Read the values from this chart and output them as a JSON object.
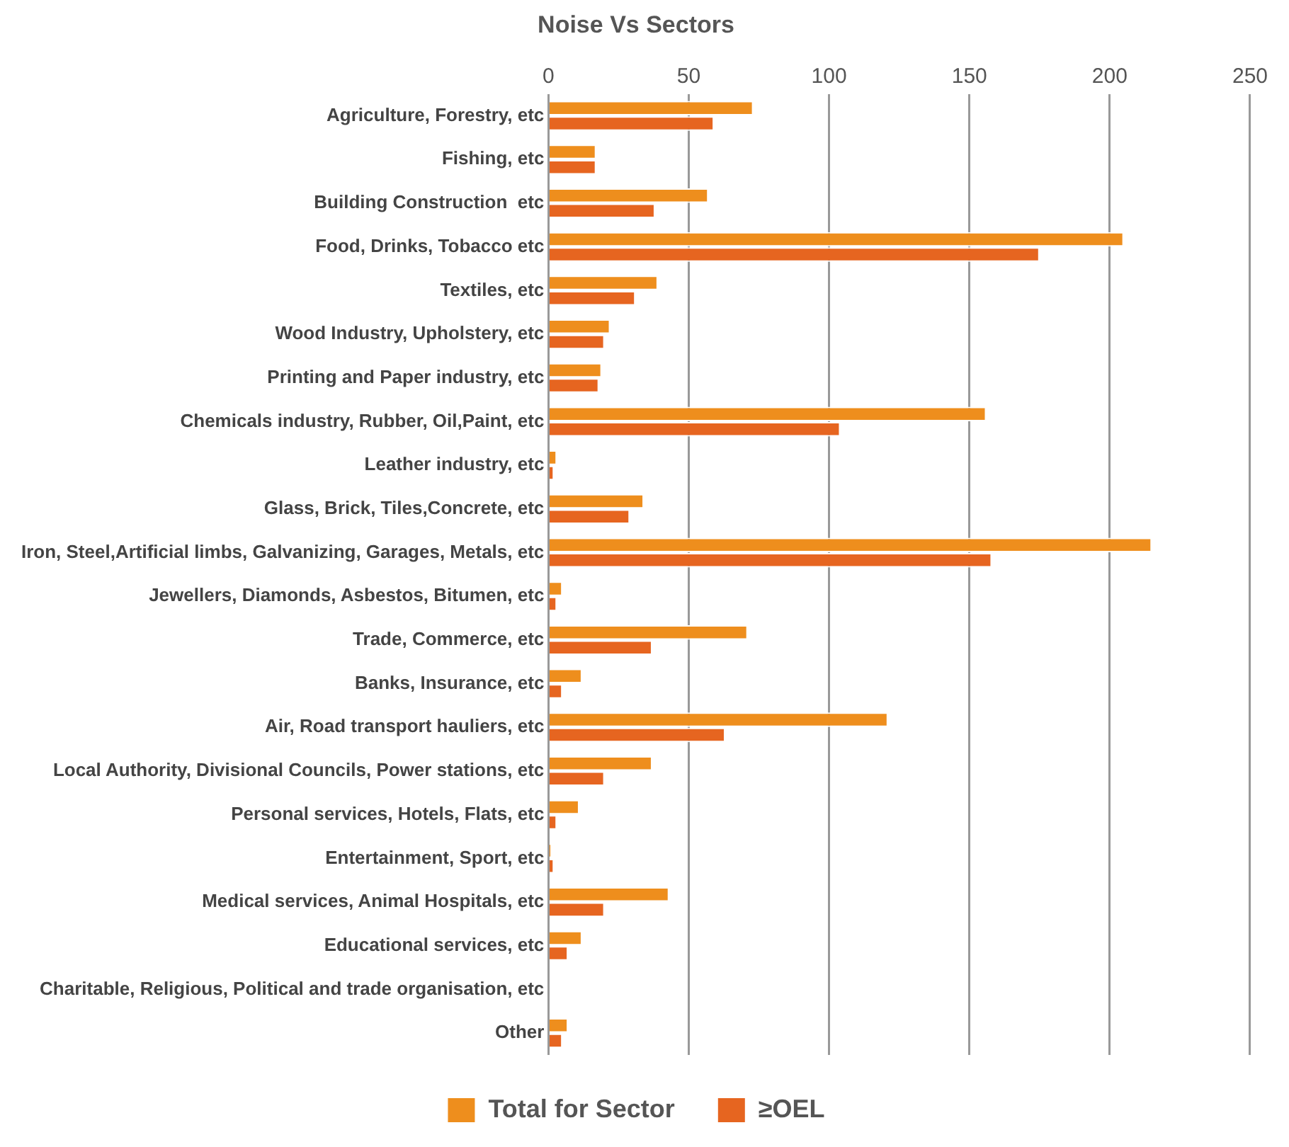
{
  "chart_data": {
    "type": "bar",
    "orientation": "horizontal",
    "title": "Noise Vs Sectors",
    "categories": [
      "Agriculture, Forestry, etc",
      "Fishing, etc",
      "Building Construction  etc",
      "Food, Drinks, Tobacco etc",
      "Textiles, etc",
      "Wood Industry, Upholstery, etc",
      "Printing and Paper industry, etc",
      "Chemicals industry, Rubber, Oil,Paint, etc",
      "Leather industry, etc",
      "Glass, Brick, Tiles,Concrete, etc",
      "Iron, Steel,Artificial limbs, Galvanizing, Garages, Metals, etc",
      "Jewellers, Diamonds, Asbestos, Bitumen, etc",
      "Trade, Commerce, etc",
      "Banks, Insurance, etc",
      "Air, Road transport hauliers, etc",
      "Local Authority, Divisional Councils, Power stations, etc",
      "Personal services, Hotels, Flats, etc",
      "Entertainment, Sport, etc",
      "Medical services, Animal Hospitals, etc",
      "Educational services, etc",
      "Charitable, Religious, Political and trade organisation, etc",
      "Other"
    ],
    "series": [
      {
        "name": "Total for Sector",
        "color": "#ee8e1d",
        "values": [
          73,
          17,
          57,
          205,
          39,
          22,
          19,
          156,
          3,
          34,
          215,
          5,
          71,
          12,
          121,
          37,
          11,
          1,
          43,
          12,
          0,
          7
        ]
      },
      {
        "name": "≥OEL",
        "color": "#e66520",
        "values": [
          59,
          17,
          38,
          175,
          31,
          20,
          18,
          104,
          2,
          29,
          158,
          3,
          37,
          5,
          63,
          20,
          3,
          2,
          20,
          7,
          0,
          5
        ]
      }
    ],
    "xlim": [
      0,
      250
    ],
    "xticks": [
      0,
      50,
      100,
      150,
      200,
      250
    ],
    "grid": "x",
    "legend": "bottom"
  }
}
